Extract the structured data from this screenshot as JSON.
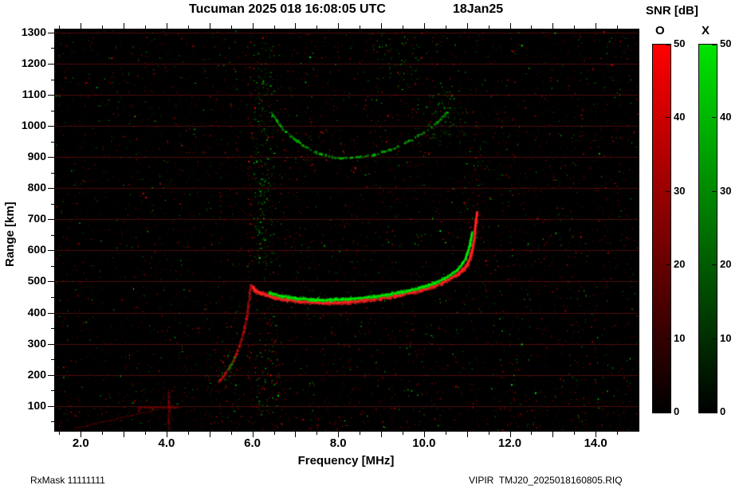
{
  "header": {
    "title": "Tucuman 2025 018 16:08:05 UTC",
    "date": "18Jan25"
  },
  "axes": {
    "x_label": "Frequency [MHz]",
    "y_label": "Range [km]"
  },
  "colorbar": {
    "title": "SNR [dB]",
    "o_label": "O",
    "x_label": "X",
    "min": 0,
    "max": 50,
    "ticks": [
      0,
      10,
      20,
      30,
      40,
      50
    ],
    "o_color": "#ff0000",
    "x_color": "#00e400"
  },
  "footer": {
    "left": "RxMask 11111111",
    "right": "VIPIR  TMJ20_2025018160805.RIQ"
  },
  "chart_data": {
    "type": "scatter",
    "title": "Tucuman 2025 018 16:08:05 UTC   18Jan25",
    "xlabel": "Frequency [MHz]",
    "ylabel": "Range [km]",
    "xlim": [
      1.4,
      15.0
    ],
    "ylim": [
      20,
      1310
    ],
    "x_ticks": [
      2.0,
      4.0,
      6.0,
      8.0,
      10.0,
      12.0,
      14.0
    ],
    "x_tick_labels": [
      "2.0",
      "4.0",
      "6.0",
      "8.0",
      "10.0",
      "12.0",
      "14.0"
    ],
    "x_minor_step": 0.5,
    "y_ticks": [
      100,
      200,
      300,
      400,
      500,
      600,
      700,
      800,
      900,
      1000,
      1100,
      1200,
      1300
    ],
    "grid": "horizontal dark-red lines every 100 km",
    "background": "#000000",
    "grid_color": "#8a1414",
    "legend": [
      "O-mode (red)",
      "X-mode (green)"
    ],
    "series": [
      {
        "name": "o-mode-f-trace",
        "color": "#ff2222",
        "thickness": 5,
        "core": true,
        "alpha": 0.9,
        "points": [
          [
            5.97,
            486
          ],
          [
            6.08,
            470
          ],
          [
            6.2,
            462
          ],
          [
            6.32,
            457
          ],
          [
            6.5,
            449
          ],
          [
            6.8,
            441
          ],
          [
            7.1,
            436
          ],
          [
            7.4,
            433
          ],
          [
            7.7,
            431
          ],
          [
            8.0,
            432
          ],
          [
            8.3,
            435
          ],
          [
            8.6,
            440
          ],
          [
            9.0,
            447
          ],
          [
            9.4,
            456
          ],
          [
            9.8,
            468
          ],
          [
            10.2,
            484
          ],
          [
            10.5,
            501
          ],
          [
            10.8,
            524
          ],
          [
            11.0,
            551
          ],
          [
            11.1,
            586
          ],
          [
            11.17,
            636
          ],
          [
            11.21,
            692
          ],
          [
            11.23,
            722
          ]
        ]
      },
      {
        "name": "x-mode-f-trace",
        "color": "#00ee00",
        "thickness": 3.5,
        "core": true,
        "alpha": 0.9,
        "points": [
          [
            6.4,
            463
          ],
          [
            6.7,
            452
          ],
          [
            7.0,
            446
          ],
          [
            7.3,
            442
          ],
          [
            7.6,
            440
          ],
          [
            7.95,
            441
          ],
          [
            8.3,
            444
          ],
          [
            8.7,
            449
          ],
          [
            9.1,
            456
          ],
          [
            9.5,
            466
          ],
          [
            9.9,
            479
          ],
          [
            10.25,
            495
          ],
          [
            10.55,
            514
          ],
          [
            10.8,
            540
          ],
          [
            10.97,
            573
          ],
          [
            11.07,
            618
          ],
          [
            11.12,
            658
          ]
        ]
      },
      {
        "name": "second-hop-trace",
        "color": "#00cc00",
        "thickness": 2.5,
        "dotted": true,
        "alpha": 0.85,
        "points": [
          [
            6.45,
            1040
          ],
          [
            6.65,
            1000
          ],
          [
            6.9,
            965
          ],
          [
            7.2,
            935
          ],
          [
            7.5,
            913
          ],
          [
            7.8,
            901
          ],
          [
            8.1,
            896
          ],
          [
            8.45,
            898
          ],
          [
            8.8,
            906
          ],
          [
            9.2,
            922
          ],
          [
            9.6,
            946
          ],
          [
            10.0,
            978
          ],
          [
            10.3,
            1010
          ],
          [
            10.55,
            1045
          ]
        ]
      },
      {
        "name": "cusp-trace",
        "color": "#dd1111",
        "thickness": 2,
        "alpha": 0.85,
        "points": [
          [
            5.22,
            178
          ],
          [
            5.35,
            200
          ],
          [
            5.5,
            232
          ],
          [
            5.63,
            268
          ],
          [
            5.73,
            308
          ],
          [
            5.82,
            352
          ],
          [
            5.89,
            402
          ],
          [
            5.93,
            452
          ],
          [
            5.96,
            488
          ]
        ]
      },
      {
        "name": "cusp-green-arc",
        "color": "#00bb00",
        "thickness": 2,
        "dotted": true,
        "alpha": 0.8,
        "points": [
          [
            5.42,
            212
          ],
          [
            5.52,
            236
          ],
          [
            5.62,
            262
          ]
        ]
      },
      {
        "name": "interference-horizontal",
        "color": "#bb0000",
        "thickness": 1.5,
        "alpha": 0.6,
        "points": [
          [
            3.3,
            95
          ],
          [
            4.3,
            95
          ]
        ]
      },
      {
        "name": "interference-vertical",
        "color": "#bb0000",
        "thickness": 1.5,
        "alpha": 0.6,
        "points": [
          [
            4.05,
            28
          ],
          [
            4.05,
            148
          ]
        ]
      },
      {
        "name": "interference-diagonal",
        "color": "#990000",
        "thickness": 1,
        "alpha": 0.45,
        "points": [
          [
            1.85,
            28
          ],
          [
            4.0,
            95
          ]
        ]
      }
    ],
    "noise_bands": [
      {
        "f0": 6.02,
        "f1": 6.5,
        "r0": 550,
        "r1": 1280,
        "count": 300,
        "color": "green"
      },
      {
        "f0": 6.05,
        "f1": 6.6,
        "r0": 30,
        "r1": 440,
        "count": 150,
        "color": "mix"
      },
      {
        "f0": 10.1,
        "f1": 10.95,
        "r0": 940,
        "r1": 1130,
        "count": 110,
        "color": "green"
      },
      {
        "f0": 8.9,
        "f1": 9.9,
        "r0": 1150,
        "r1": 1290,
        "count": 60,
        "color": "green"
      },
      {
        "f0": 4.9,
        "f1": 5.6,
        "r0": 140,
        "r1": 280,
        "count": 60,
        "color": "mix"
      },
      {
        "f0": 5.88,
        "f1": 6.0,
        "r0": 25,
        "r1": 1300,
        "count": 130,
        "color": "red"
      },
      {
        "f0": 10.9,
        "f1": 11.4,
        "r0": 600,
        "r1": 1000,
        "count": 70,
        "color": "mix"
      },
      {
        "f0": 1.5,
        "f1": 15.0,
        "r0": 25,
        "r1": 120,
        "count": 200,
        "color": "red"
      },
      {
        "f0": 6.6,
        "f1": 10.6,
        "r0": 860,
        "r1": 1060,
        "count": 80,
        "color": "red"
      }
    ]
  }
}
